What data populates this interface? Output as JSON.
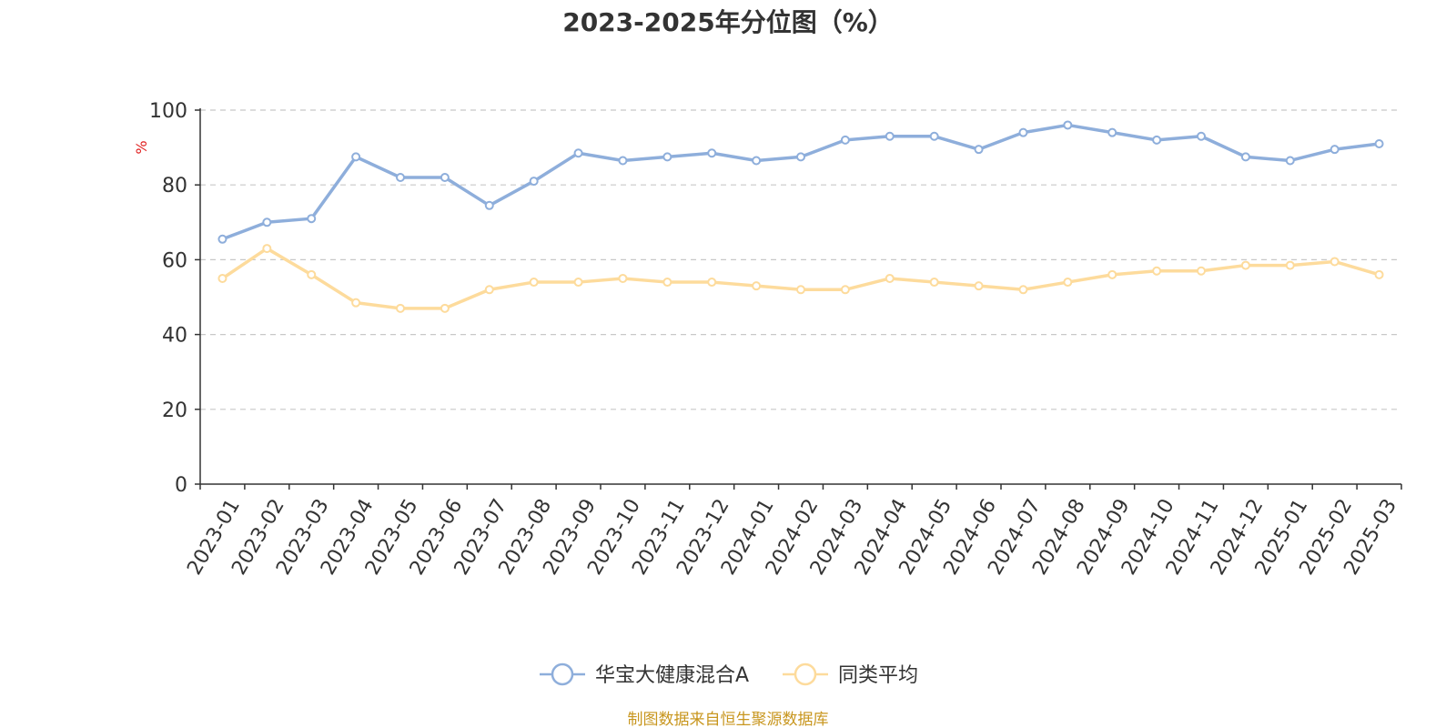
{
  "chart_data": {
    "type": "line",
    "title": "2023-2025年分位图（%）",
    "ylabel": "%",
    "xlabel": "",
    "ylim": [
      0,
      100
    ],
    "yticks": [
      0,
      20,
      40,
      60,
      80,
      100
    ],
    "grid": true,
    "legend_position": "bottom-center",
    "categories": [
      "2023-01",
      "2023-02",
      "2023-03",
      "2023-04",
      "2023-05",
      "2023-06",
      "2023-07",
      "2023-08",
      "2023-09",
      "2023-10",
      "2023-11",
      "2023-12",
      "2024-01",
      "2024-02",
      "2024-03",
      "2024-04",
      "2024-05",
      "2024-06",
      "2024-07",
      "2024-08",
      "2024-09",
      "2024-10",
      "2024-11",
      "2024-12",
      "2025-01",
      "2025-02",
      "2025-03"
    ],
    "series": [
      {
        "name": "华宝大健康混合A",
        "color": "#8eaedb",
        "values": [
          65.5,
          70,
          71,
          87.5,
          82,
          82,
          74.5,
          81,
          88.5,
          86.5,
          87.5,
          88.5,
          86.5,
          87.5,
          92,
          93,
          93,
          89.5,
          94,
          96,
          94,
          92,
          93,
          87.5,
          86.5,
          89.5,
          91
        ]
      },
      {
        "name": "同类平均",
        "color": "#fddb9c",
        "values": [
          55,
          63,
          56,
          48.5,
          47,
          47,
          52,
          54,
          54,
          55,
          54,
          54,
          53,
          52,
          52,
          55,
          54,
          53,
          52,
          54,
          56,
          57,
          57,
          58.5,
          58.5,
          59.5,
          56
        ]
      }
    ]
  },
  "footer": {
    "source": "制图数据来自恒生聚源数据库",
    "source_color": "#c8961e"
  },
  "unit_color": "#e02020"
}
